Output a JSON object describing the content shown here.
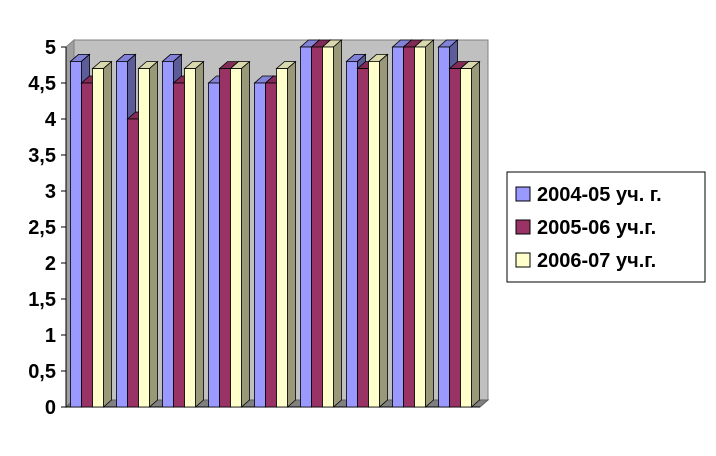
{
  "chart_data": {
    "type": "bar",
    "style": "3d-clustered-column",
    "categories": [
      "",
      "",
      "",
      "",
      "",
      "",
      "",
      "",
      ""
    ],
    "ylim": [
      0,
      5
    ],
    "yticks": [
      "0",
      "0,5",
      "1",
      "1,5",
      "2",
      "2,5",
      "3",
      "3,5",
      "4",
      "4,5",
      "5"
    ],
    "grid": false,
    "legend_position": "right",
    "plot_background": "#c0c0c0",
    "series": [
      {
        "name": "2004-05 уч. г.",
        "color": "#9999ff",
        "values": [
          4.8,
          4.8,
          4.8,
          4.5,
          4.5,
          5,
          4.8,
          5,
          5
        ]
      },
      {
        "name": "2005-06 уч.г.",
        "color": "#993366",
        "values": [
          4.5,
          4.0,
          4.5,
          4.7,
          4.5,
          5,
          4.7,
          5,
          4.7
        ]
      },
      {
        "name": "2006-07 уч.г.",
        "color": "#ffffcc",
        "values": [
          4.7,
          4.7,
          4.7,
          4.7,
          4.7,
          5,
          4.8,
          5,
          4.7
        ]
      }
    ]
  }
}
